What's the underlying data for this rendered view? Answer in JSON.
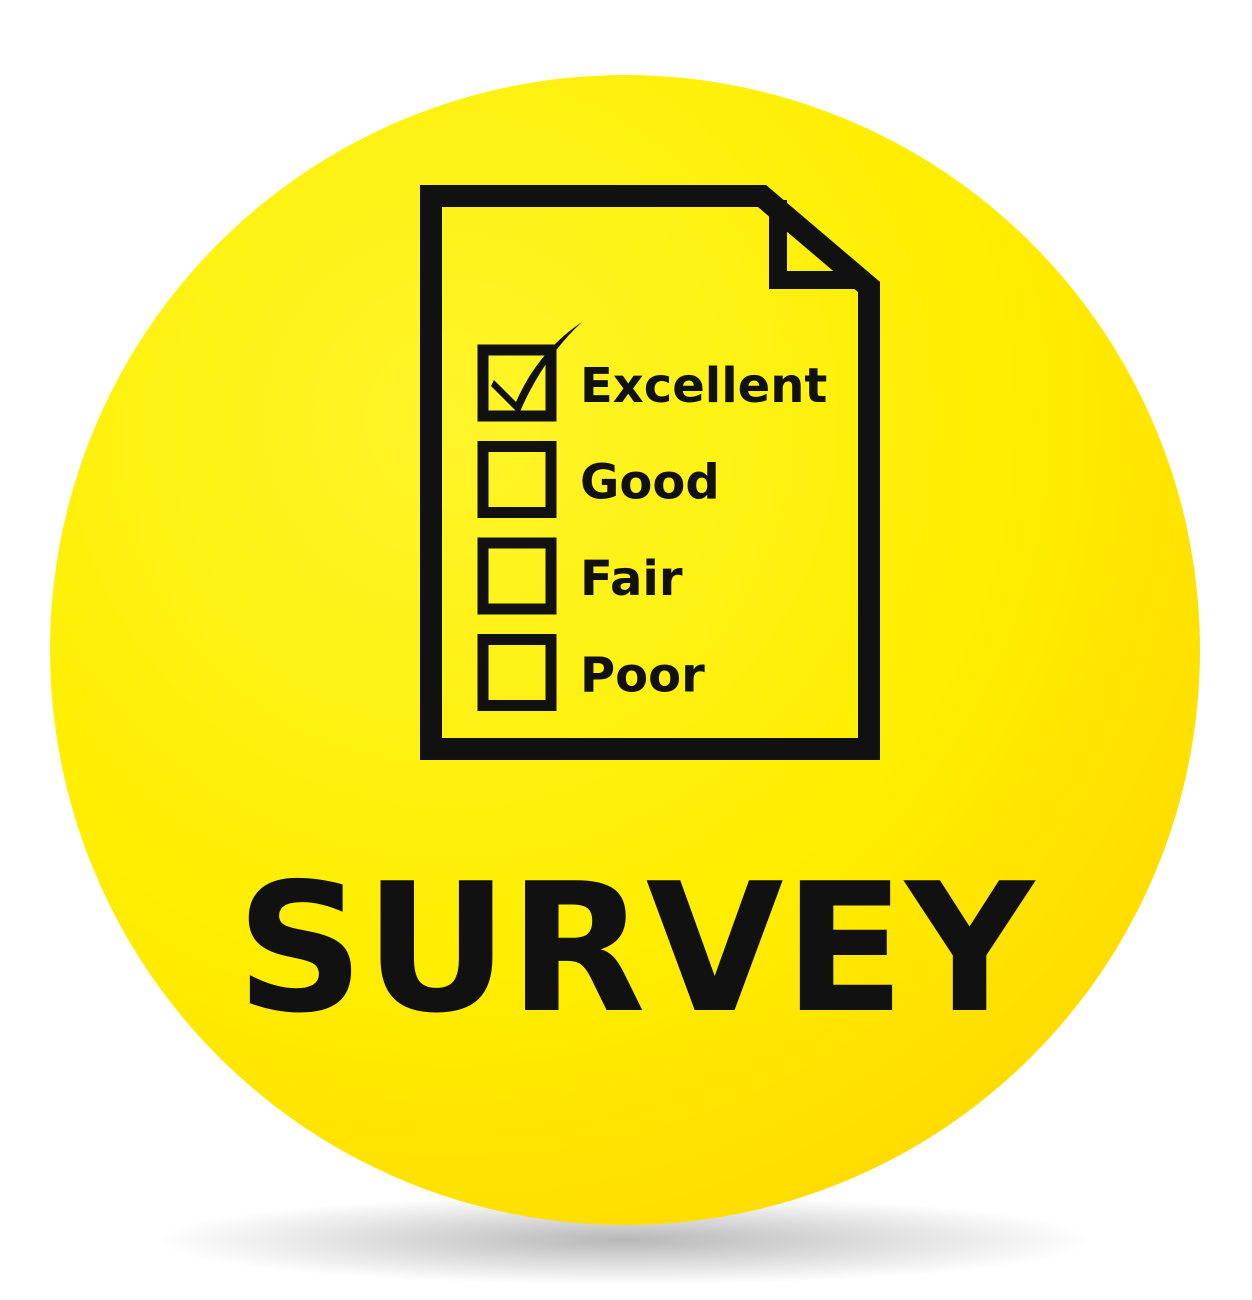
{
  "title": "SURVEY",
  "options": [
    {
      "label": "Excellent",
      "checked": true
    },
    {
      "label": "Good",
      "checked": false
    },
    {
      "label": "Fair",
      "checked": false
    },
    {
      "label": "Poor",
      "checked": false
    }
  ]
}
